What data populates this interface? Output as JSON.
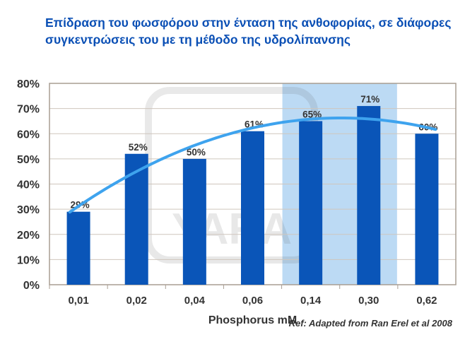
{
  "chart_data": {
    "type": "bar",
    "title": "Επίδραση του φωσφόρου στην ένταση της ανθοφορίας, σε διάφορες συγκεντρώσεις του με τη μέθοδο της υδρολίπανσης",
    "xlabel": "Phosphorus mM",
    "ylabel": "",
    "categories": [
      "0,01",
      "0,02",
      "0,04",
      "0,06",
      "0,14",
      "0,30",
      "0,62"
    ],
    "values": [
      29,
      52,
      50,
      61,
      65,
      71,
      60
    ],
    "data_labels": [
      "29%",
      "52%",
      "50%",
      "61%",
      "65%",
      "71%",
      "60%"
    ],
    "ylim": [
      0,
      80
    ],
    "yticks": [
      "0%",
      "10%",
      "20%",
      "30%",
      "40%",
      "50%",
      "60%",
      "70%",
      "80%"
    ],
    "grid": true,
    "trendline": "polynomial order 2",
    "highlighted_categories": [
      "0,14",
      "0,30"
    ],
    "colors": {
      "bar": "#0a55b8",
      "trendline": "#3ea3ee",
      "highlight": "#bcdaf4",
      "title": "#0a4fb5"
    }
  },
  "footer": {
    "ref": "Ref: Adapted from Ran Erel et al 2008"
  },
  "watermark": "YARA"
}
